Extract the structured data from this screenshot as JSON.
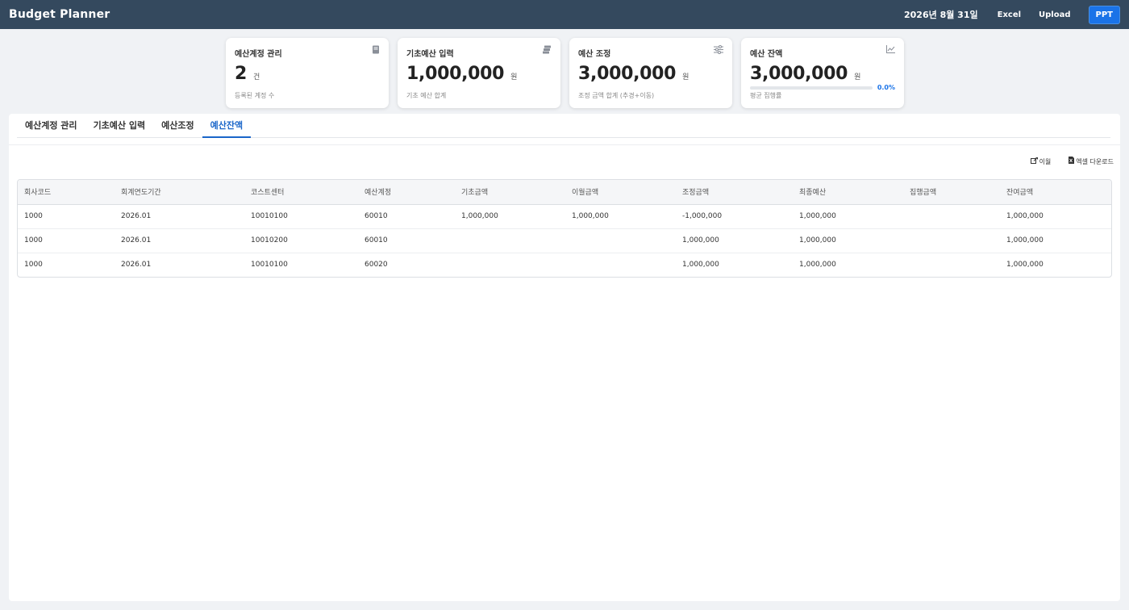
{
  "app": {
    "title": "Budget Planner"
  },
  "header": {
    "date": "2026년 8월 31일",
    "excel_label": "Excel",
    "upload_label": "Upload",
    "ppt_label": "PPT"
  },
  "cards": [
    {
      "title": "예산계정 관리",
      "icon": "book-icon",
      "value": "2",
      "unit": "건",
      "sub": "등록된 계정 수"
    },
    {
      "title": "기초예산 입력",
      "icon": "stack-icon",
      "value": "1,000,000",
      "unit": "원",
      "sub": "기초 예산 합계"
    },
    {
      "title": "예산 조정",
      "icon": "sliders-icon",
      "value": "3,000,000",
      "unit": "원",
      "sub": "조정 금액 합계 (추경+이동)"
    },
    {
      "title": "예산 잔액",
      "icon": "chart-icon",
      "value": "3,000,000",
      "unit": "원",
      "sub": "평균 집행률",
      "progress_label": "0.0%",
      "progress": 0.0
    }
  ],
  "tabs": [
    {
      "label": "예산계정 관리",
      "active": false
    },
    {
      "label": "기초예산 입력",
      "active": false
    },
    {
      "label": "예산조정",
      "active": false
    },
    {
      "label": "예산잔액",
      "active": true
    }
  ],
  "toolbar": {
    "transfer_label": "이월",
    "excel_download_label": "엑셀 다운로드"
  },
  "table": {
    "columns": [
      "회사코드",
      "회계연도기간",
      "코스트센터",
      "예산계정",
      "기초금액",
      "이월금액",
      "조정금액",
      "최종예산",
      "집행금액",
      "잔여금액"
    ],
    "rows": [
      [
        "1000",
        "2026.01",
        "10010100",
        "60010",
        "1,000,000",
        "1,000,000",
        "-1,000,000",
        "1,000,000",
        "",
        "1,000,000"
      ],
      [
        "1000",
        "2026.01",
        "10010200",
        "60010",
        "",
        "",
        "1,000,000",
        "1,000,000",
        "",
        "1,000,000"
      ],
      [
        "1000",
        "2026.01",
        "10010100",
        "60020",
        "",
        "",
        "1,000,000",
        "1,000,000",
        "",
        "1,000,000"
      ]
    ]
  },
  "colors": {
    "header_bg": "#34495e",
    "accent": "#1a73e8",
    "tab_active": "#1a66c9"
  }
}
